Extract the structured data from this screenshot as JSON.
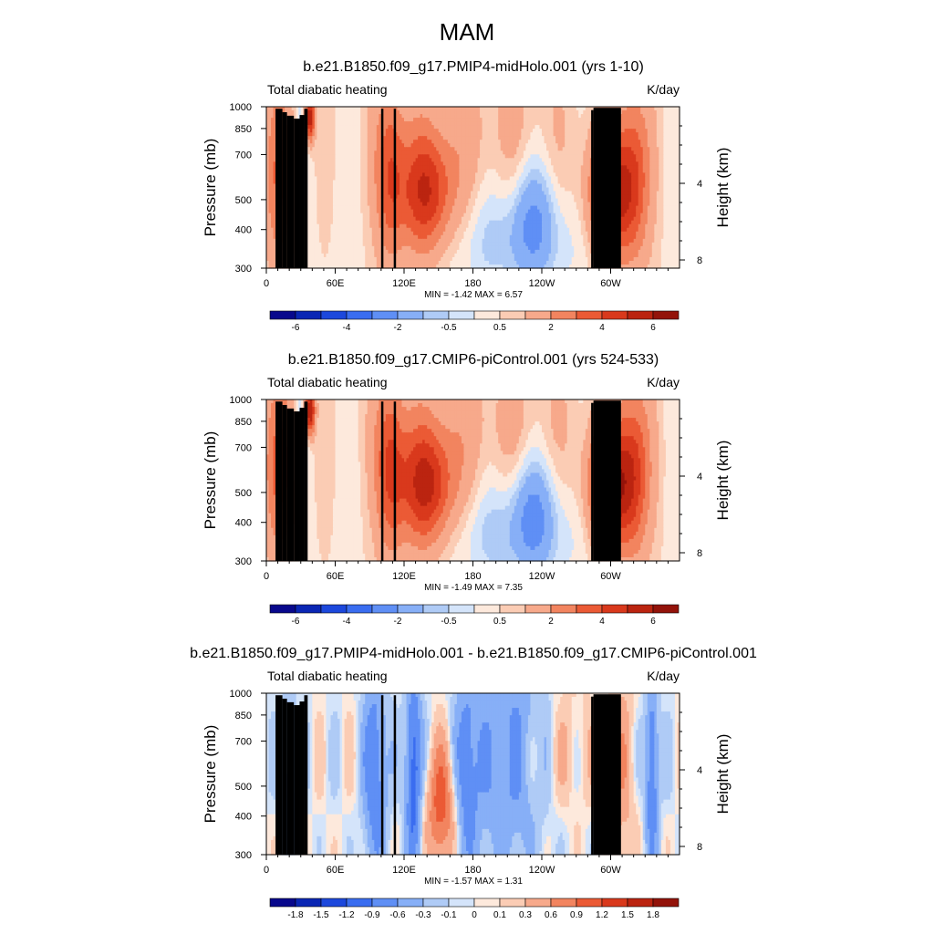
{
  "figure_title": "MAM",
  "chart_data": [
    {
      "type": "heatmap",
      "title": "b.e21.B1850.f09_g17.PMIP4-midHolo.001 (yrs 1-10)",
      "subtitle_left": "Total diabatic heating",
      "subtitle_right": "K/day",
      "xlabel": "",
      "ylabel": "Pressure (mb)",
      "ylabel_right": "Height (km)",
      "x_ticks": [
        "0",
        "60E",
        "120E",
        "180",
        "120W",
        "60W"
      ],
      "x_tick_lon": [
        0,
        60,
        120,
        180,
        240,
        300
      ],
      "xlim": [
        0,
        360
      ],
      "y_ticks": [
        "300",
        "400",
        "500",
        "700",
        "850",
        "1000"
      ],
      "y_tick_p": [
        300,
        400,
        500,
        700,
        850,
        1000
      ],
      "ylim": [
        1000,
        300
      ],
      "right_ticks": [
        "8",
        "4"
      ],
      "right_tick_km": [
        8,
        4
      ],
      "stats": "MIN =  -1.42  MAX =   6.57",
      "min": -1.42,
      "max": 6.57,
      "colorbar_labels": [
        "-6",
        "-4",
        "-2",
        "-0.5",
        "0.5",
        "2",
        "4",
        "6"
      ],
      "levels": [
        -7,
        -6,
        -5,
        -4,
        -3,
        -2,
        -1,
        -0.5,
        0,
        0.5,
        1,
        2,
        3,
        4,
        5,
        6,
        7
      ],
      "colorbar_colors": [
        "#08088c",
        "#0a26b4",
        "#1c48dc",
        "#3a6df0",
        "#5f8ff5",
        "#87aff7",
        "#afcbf6",
        "#d4e4fa",
        "#fde9dc",
        "#fbccb4",
        "#f7a98b",
        "#f2845f",
        "#eb5a35",
        "#d9391c",
        "#bb2410",
        "#93130a"
      ],
      "field_scale": 1.0
    },
    {
      "type": "heatmap",
      "title": "b.e21.B1850.f09_g17.CMIP6-piControl.001 (yrs 524-533)",
      "subtitle_left": "Total diabatic heating",
      "subtitle_right": "K/day",
      "xlabel": "",
      "ylabel": "Pressure (mb)",
      "ylabel_right": "Height (km)",
      "x_ticks": [
        "0",
        "60E",
        "120E",
        "180",
        "120W",
        "60W"
      ],
      "x_tick_lon": [
        0,
        60,
        120,
        180,
        240,
        300
      ],
      "xlim": [
        0,
        360
      ],
      "y_ticks": [
        "300",
        "400",
        "500",
        "700",
        "850",
        "1000"
      ],
      "y_tick_p": [
        300,
        400,
        500,
        700,
        850,
        1000
      ],
      "ylim": [
        1000,
        300
      ],
      "right_ticks": [
        "8",
        "4"
      ],
      "right_tick_km": [
        8,
        4
      ],
      "stats": "MIN =  -1.49  MAX =   7.35",
      "min": -1.49,
      "max": 7.35,
      "colorbar_labels": [
        "-6",
        "-4",
        "-2",
        "-0.5",
        "0.5",
        "2",
        "4",
        "6"
      ],
      "levels": [
        -7,
        -6,
        -5,
        -4,
        -3,
        -2,
        -1,
        -0.5,
        0,
        0.5,
        1,
        2,
        3,
        4,
        5,
        6,
        7
      ],
      "colorbar_colors": [
        "#08088c",
        "#0a26b4",
        "#1c48dc",
        "#3a6df0",
        "#5f8ff5",
        "#87aff7",
        "#afcbf6",
        "#d4e4fa",
        "#fde9dc",
        "#fbccb4",
        "#f7a98b",
        "#f2845f",
        "#eb5a35",
        "#d9391c",
        "#bb2410",
        "#93130a"
      ],
      "field_scale": 1.08
    },
    {
      "type": "heatmap",
      "title": "b.e21.B1850.f09_g17.PMIP4-midHolo.001 - b.e21.B1850.f09_g17.CMIP6-piControl.001",
      "subtitle_left": "Total diabatic heating",
      "subtitle_right": "K/day",
      "xlabel": "",
      "ylabel": "Pressure (mb)",
      "ylabel_right": "Height (km)",
      "x_ticks": [
        "0",
        "60E",
        "120E",
        "180",
        "120W",
        "60W"
      ],
      "x_tick_lon": [
        0,
        60,
        120,
        180,
        240,
        300
      ],
      "xlim": [
        0,
        360
      ],
      "y_ticks": [
        "300",
        "400",
        "500",
        "700",
        "850",
        "1000"
      ],
      "y_tick_p": [
        300,
        400,
        500,
        700,
        850,
        1000
      ],
      "ylim": [
        1000,
        300
      ],
      "right_ticks": [
        "8",
        "4"
      ],
      "right_tick_km": [
        8,
        4
      ],
      "stats": "MIN =  -1.57  MAX =   1.31",
      "min": -1.57,
      "max": 1.31,
      "colorbar_labels": [
        "-1.8",
        "-1.5",
        "-1.2",
        "-0.9",
        "-0.6",
        "-0.3",
        "-0.1",
        "0",
        "0.1",
        "0.3",
        "0.6",
        "0.9",
        "1.2",
        "1.5",
        "1.8"
      ],
      "levels": [
        -2.1,
        -1.8,
        -1.5,
        -1.2,
        -0.9,
        -0.6,
        -0.3,
        -0.1,
        0,
        0.1,
        0.3,
        0.6,
        0.9,
        1.2,
        1.5,
        1.8,
        2.1
      ],
      "colorbar_colors": [
        "#08088c",
        "#0a26b4",
        "#1c48dc",
        "#3a6df0",
        "#5f8ff5",
        "#87aff7",
        "#afcbf6",
        "#d4e4fa",
        "#fde9dc",
        "#fbccb4",
        "#f7a98b",
        "#f2845f",
        "#eb5a35",
        "#d9391c",
        "#bb2410",
        "#93130a"
      ],
      "field_scale": 1.0
    }
  ]
}
